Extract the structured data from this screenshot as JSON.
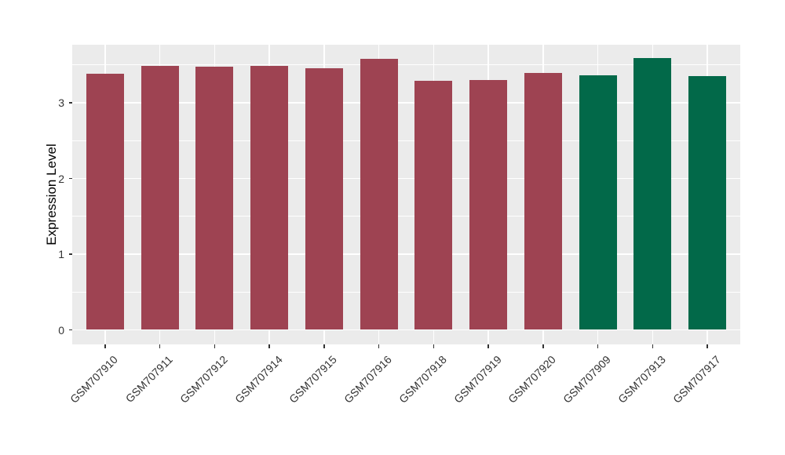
{
  "chart_data": {
    "type": "bar",
    "title": "",
    "xlabel": "",
    "ylabel": "Expression Level",
    "categories": [
      "GSM707910",
      "GSM707911",
      "GSM707912",
      "GSM707914",
      "GSM707915",
      "GSM707916",
      "GSM707918",
      "GSM707919",
      "GSM707920",
      "GSM707909",
      "GSM707913",
      "GSM707917"
    ],
    "values": [
      3.38,
      3.49,
      3.48,
      3.49,
      3.46,
      3.58,
      3.29,
      3.3,
      3.39,
      3.36,
      3.59,
      3.35
    ],
    "bar_colors": [
      "#9e4352",
      "#9e4352",
      "#9e4352",
      "#9e4352",
      "#9e4352",
      "#9e4352",
      "#9e4352",
      "#9e4352",
      "#9e4352",
      "#026949",
      "#026949",
      "#026949"
    ],
    "color_legend": {
      "maroon_group_color": "#9e4352",
      "green_group_color": "#026949",
      "maroon_samples": [
        "GSM707910",
        "GSM707911",
        "GSM707912",
        "GSM707914",
        "GSM707915",
        "GSM707916",
        "GSM707918",
        "GSM707919",
        "GSM707920"
      ],
      "green_samples": [
        "GSM707909",
        "GSM707913",
        "GSM707917"
      ]
    },
    "ylim": [
      0,
      3.77
    ],
    "yticks": [
      0,
      1,
      2,
      3
    ],
    "yticks_minor": [
      0.5,
      1.5,
      2.5,
      3.5
    ],
    "ytick_labels": [
      "0",
      "1",
      "2",
      "3"
    ],
    "grid": "major-and-minor",
    "legend_position": "none",
    "panel_bg": "#ebebeb",
    "grid_color": "#ffffff",
    "tick_color": "#333333",
    "bar_width_fraction": 0.69
  }
}
